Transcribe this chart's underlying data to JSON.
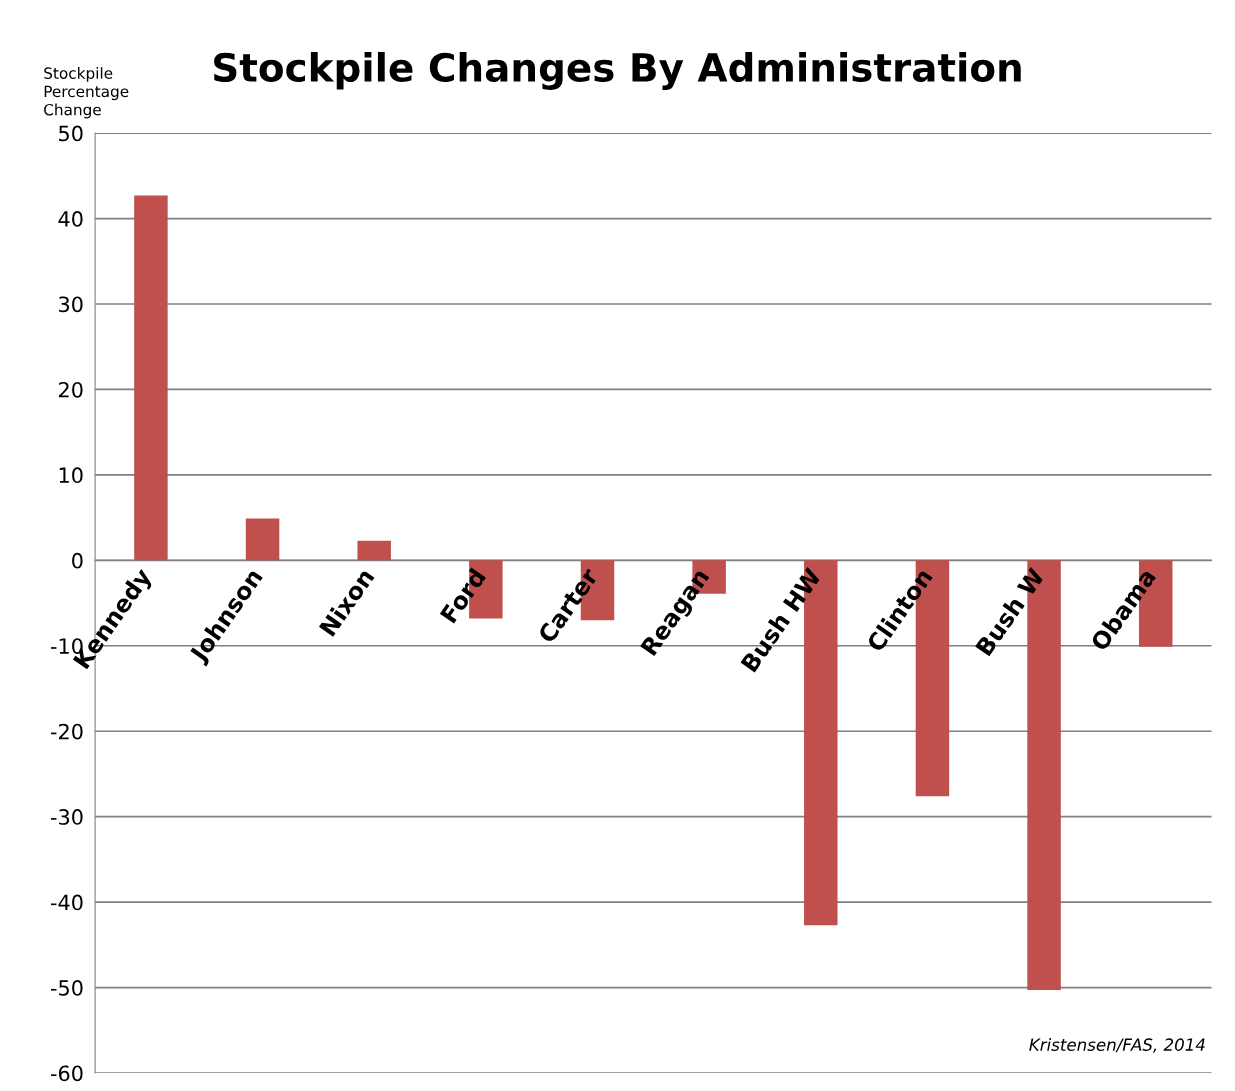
{
  "chart_data": {
    "type": "bar",
    "title": "Stockpile Changes By Administration",
    "ylabel": "Stockpile\nPercentage\nChange",
    "categories": [
      "Kennedy",
      "Johnson",
      "Nixon",
      "Ford",
      "Carter",
      "Reagan",
      "Bush HW",
      "Clinton",
      "Bush W",
      "Obama"
    ],
    "values": [
      42.7,
      4.9,
      2.3,
      -6.8,
      -7.0,
      -3.9,
      -42.7,
      -27.6,
      -50.3,
      -10.1
    ],
    "color": "#c0504d",
    "ylim": [
      -60,
      50
    ],
    "yticks": [
      -60,
      -50,
      -40,
      -30,
      -20,
      -10,
      0,
      10,
      20,
      30,
      40,
      50
    ],
    "grid": "y",
    "annotations": [
      "Kristensen/FAS, 2014"
    ]
  }
}
